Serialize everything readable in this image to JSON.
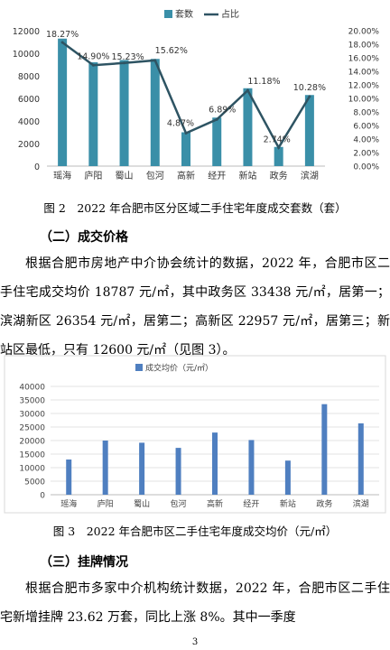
{
  "chart_data": [
    {
      "type": "bar",
      "categories": [
        "瑶海",
        "庐阳",
        "蜀山",
        "包河",
        "高新",
        "经开",
        "新站",
        "政务",
        "滨湖"
      ],
      "series": [
        {
          "name": "套数",
          "type": "bar",
          "axis": "left",
          "values": [
            11300,
            9200,
            9400,
            9500,
            3000,
            4300,
            6900,
            1700,
            6300
          ],
          "color": "#3a8fa8"
        },
        {
          "name": "占比",
          "type": "line",
          "axis": "right",
          "values": [
            18.27,
            14.9,
            15.23,
            15.62,
            4.87,
            6.89,
            11.18,
            2.74,
            10.28
          ],
          "labels": [
            "18.27%",
            "14.90%",
            "15.23%",
            "15.62%",
            "4.87%",
            "6.89%",
            "11.18%",
            "2.74%",
            "10.28%"
          ],
          "color": "#2e5463"
        }
      ],
      "ylim_left": [
        0,
        12000
      ],
      "yticks_left": [
        "0",
        "2000",
        "4000",
        "6000",
        "8000",
        "10000",
        "12000"
      ],
      "ylim_right": [
        0,
        20
      ],
      "yticks_right": [
        "0.00%",
        "2.00%",
        "4.00%",
        "6.00%",
        "8.00%",
        "10.00%",
        "12.00%",
        "14.00%",
        "16.00%",
        "18.00%",
        "20.00%"
      ],
      "legend": "top",
      "grid": false
    },
    {
      "type": "bar",
      "categories": [
        "瑶海",
        "庐阳",
        "蜀山",
        "包河",
        "高新",
        "经开",
        "新站",
        "政务",
        "滨湖"
      ],
      "series": [
        {
          "name": "成交均价（元/㎡）",
          "values": [
            13000,
            20000,
            19200,
            17300,
            22957,
            20200,
            12600,
            33438,
            26354
          ],
          "color": "#4f7fc0"
        }
      ],
      "ylim": [
        0,
        40000
      ],
      "yticks": [
        "0",
        "5000",
        "10000",
        "15000",
        "20000",
        "25000",
        "30000",
        "35000",
        "40000"
      ],
      "legend": "top",
      "grid": true
    }
  ],
  "captions": {
    "fig2": "图 2　2022 年合肥市区分区域二手住宅年度成交套数（套）",
    "fig3": "图 3　2022 年合肥市区二手住宅年度成交均价（元/㎡）"
  },
  "sections": {
    "price_heading": "（二）成交价格",
    "price_text": "根据合肥市房地产中介协会统计的数据，2022 年，合肥市区二手住宅成交均价 18787 元/㎡，其中政务区 33438 元/㎡，居第一；滨湖新区 26354 元/㎡，居第二；高新区 22957 元/㎡，居第三；新站区最低，只有 12600 元/㎡（见图 3）。",
    "listing_heading": "（三）挂牌情况",
    "listing_text": "根据合肥市多家中介机构统计数据，2022 年，合肥市区二手住宅新增挂牌 23.62 万套，同比上涨 8%。其中一季度"
  },
  "page_number": "3"
}
